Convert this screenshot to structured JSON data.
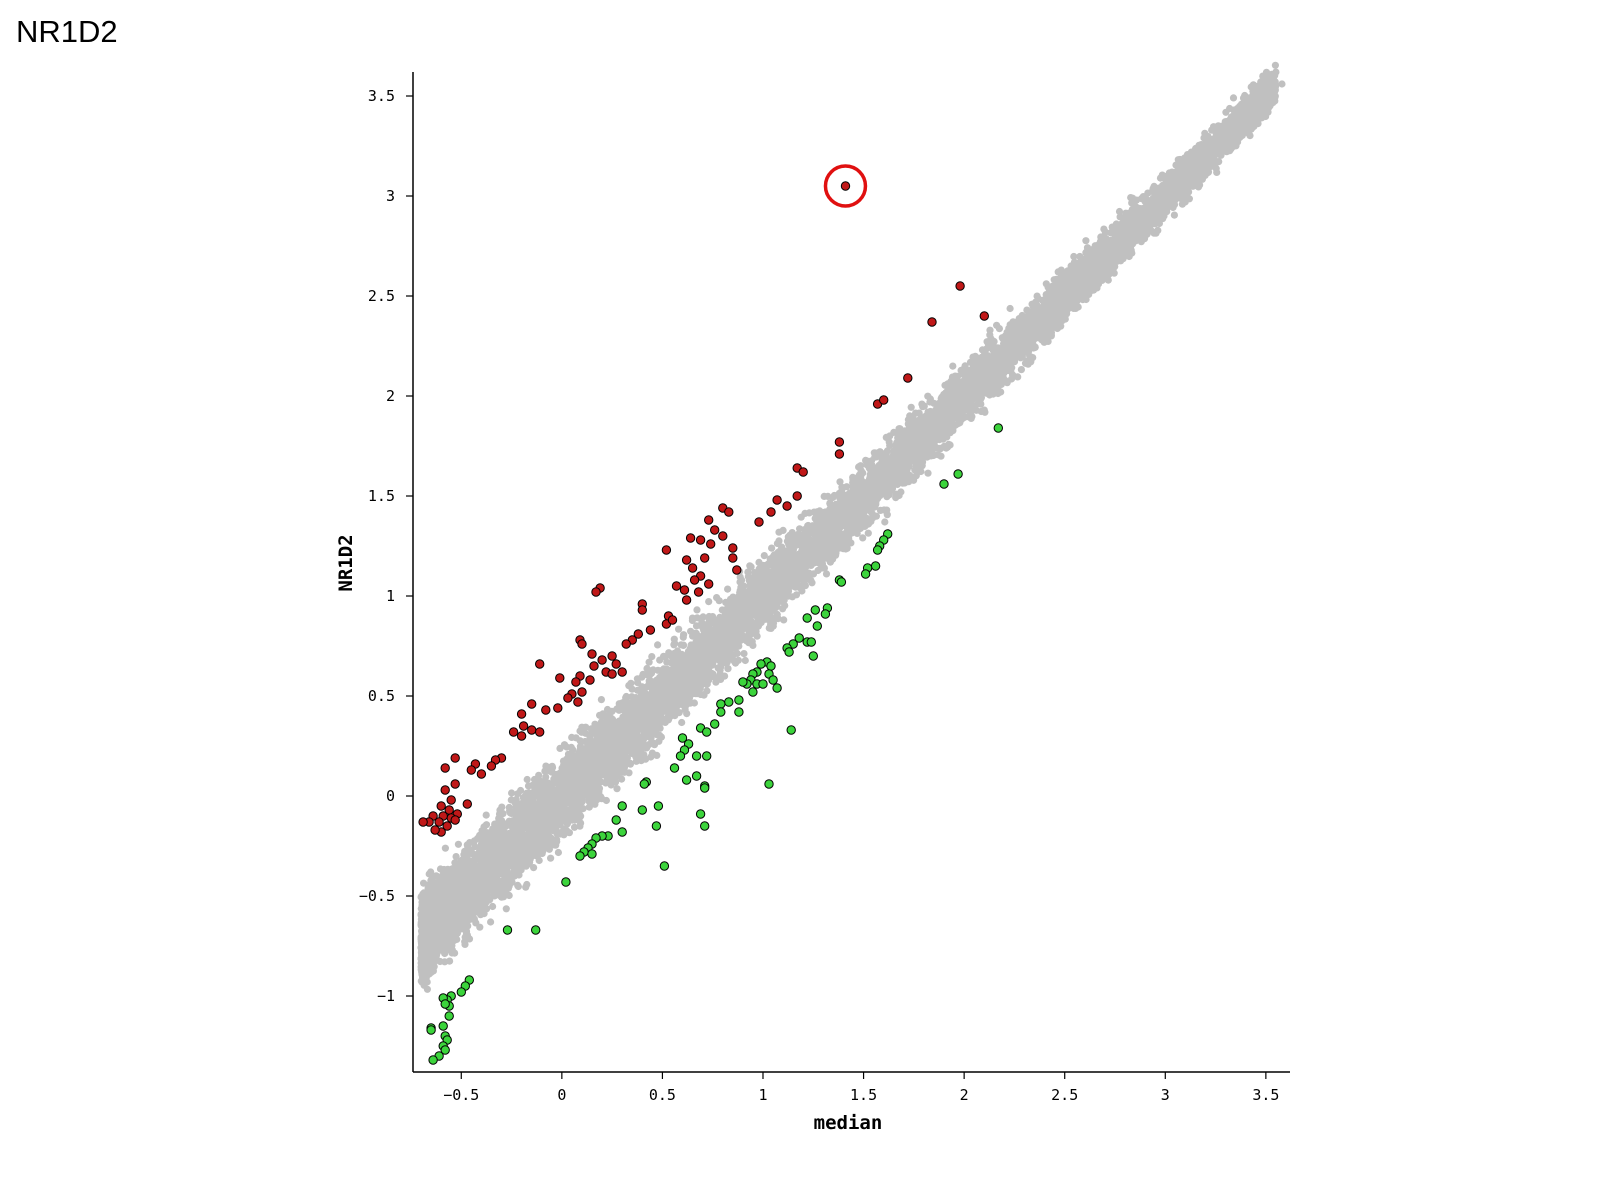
{
  "page": {
    "title": "NR1D2"
  },
  "chart_data": {
    "type": "scatter",
    "title": "",
    "xlabel": "median",
    "ylabel": "NR1D2",
    "xlim": [
      -0.74,
      3.62
    ],
    "ylim": [
      -1.38,
      3.62
    ],
    "x_ticks": [
      "-0.5",
      "0",
      "0.5",
      "1",
      "1.5",
      "2",
      "2.5",
      "3",
      "3.5"
    ],
    "y_ticks": [
      "-1",
      "-0.5",
      "0",
      "0.5",
      "1",
      "1.5",
      "2",
      "2.5",
      "3",
      "3.5"
    ],
    "grid": false,
    "legend": "none",
    "colors": {
      "background": "#c0c0c0",
      "up": "#c01818",
      "down": "#3cd43c",
      "highlight_ring": "#e01010"
    },
    "background_band": {
      "description": "dense cloud of non-significant genes along the diagonal",
      "count_approx": 20000,
      "x_range": [
        -0.7,
        3.55
      ],
      "slope": 1.0,
      "intercept": 0.0,
      "spread": 0.22,
      "top_tail": [
        [
          3.45,
          3.53
        ],
        [
          3.52,
          3.56
        ],
        [
          3.58,
          3.56
        ]
      ]
    },
    "series": [
      {
        "name": "",
        "role": "up",
        "points": [
          [
            1.41,
            3.05
          ],
          [
            1.98,
            2.55
          ],
          [
            1.84,
            2.37
          ],
          [
            2.1,
            2.4
          ],
          [
            1.72,
            2.09
          ],
          [
            1.57,
            1.96
          ],
          [
            1.6,
            1.98
          ],
          [
            1.38,
            1.77
          ],
          [
            1.38,
            1.71
          ],
          [
            1.17,
            1.64
          ],
          [
            1.2,
            1.62
          ],
          [
            1.07,
            1.48
          ],
          [
            1.12,
            1.45
          ],
          [
            1.17,
            1.5
          ],
          [
            1.04,
            1.42
          ],
          [
            0.98,
            1.37
          ],
          [
            0.8,
            1.44
          ],
          [
            0.83,
            1.42
          ],
          [
            0.73,
            1.38
          ],
          [
            0.76,
            1.33
          ],
          [
            0.8,
            1.3
          ],
          [
            0.85,
            1.24
          ],
          [
            0.69,
            1.28
          ],
          [
            0.74,
            1.26
          ],
          [
            0.64,
            1.29
          ],
          [
            0.52,
            1.23
          ],
          [
            0.62,
            1.18
          ],
          [
            0.71,
            1.19
          ],
          [
            0.65,
            1.14
          ],
          [
            0.69,
            1.1
          ],
          [
            0.85,
            1.19
          ],
          [
            0.87,
            1.13
          ],
          [
            0.73,
            1.06
          ],
          [
            0.66,
            1.08
          ],
          [
            0.61,
            1.03
          ],
          [
            0.68,
            1.02
          ],
          [
            0.57,
            1.05
          ],
          [
            0.62,
            0.98
          ],
          [
            0.53,
            0.9
          ],
          [
            0.52,
            0.86
          ],
          [
            0.55,
            0.88
          ],
          [
            0.4,
            0.96
          ],
          [
            0.4,
            0.93
          ],
          [
            0.44,
            0.83
          ],
          [
            0.38,
            0.81
          ],
          [
            0.35,
            0.78
          ],
          [
            0.32,
            0.76
          ],
          [
            0.19,
            1.04
          ],
          [
            0.17,
            1.02
          ],
          [
            0.09,
            0.78
          ],
          [
            0.1,
            0.76
          ],
          [
            0.15,
            0.71
          ],
          [
            0.2,
            0.68
          ],
          [
            0.25,
            0.7
          ],
          [
            0.27,
            0.66
          ],
          [
            0.22,
            0.62
          ],
          [
            0.16,
            0.65
          ],
          [
            0.25,
            0.61
          ],
          [
            0.3,
            0.62
          ],
          [
            0.14,
            0.58
          ],
          [
            0.09,
            0.6
          ],
          [
            0.07,
            0.57
          ],
          [
            0.1,
            0.52
          ],
          [
            0.05,
            0.51
          ],
          [
            -0.01,
            0.59
          ],
          [
            -0.11,
            0.66
          ],
          [
            -0.15,
            0.46
          ],
          [
            -0.08,
            0.43
          ],
          [
            -0.02,
            0.44
          ],
          [
            0.08,
            0.47
          ],
          [
            0.03,
            0.49
          ],
          [
            -0.2,
            0.41
          ],
          [
            -0.19,
            0.35
          ],
          [
            -0.15,
            0.33
          ],
          [
            -0.24,
            0.32
          ],
          [
            -0.11,
            0.32
          ],
          [
            -0.2,
            0.3
          ],
          [
            -0.3,
            0.19
          ],
          [
            -0.33,
            0.18
          ],
          [
            -0.35,
            0.15
          ],
          [
            -0.43,
            0.16
          ],
          [
            -0.4,
            0.11
          ],
          [
            -0.45,
            0.13
          ],
          [
            -0.53,
            0.19
          ],
          [
            -0.58,
            0.14
          ],
          [
            -0.53,
            0.06
          ],
          [
            -0.58,
            0.03
          ],
          [
            -0.55,
            -0.02
          ],
          [
            -0.6,
            -0.05
          ],
          [
            -0.47,
            -0.04
          ],
          [
            -0.56,
            -0.07
          ],
          [
            -0.52,
            -0.09
          ],
          [
            -0.55,
            -0.11
          ],
          [
            -0.59,
            -0.1
          ],
          [
            -0.64,
            -0.1
          ],
          [
            -0.61,
            -0.13
          ],
          [
            -0.57,
            -0.15
          ],
          [
            -0.6,
            -0.18
          ],
          [
            -0.63,
            -0.17
          ],
          [
            -0.66,
            -0.13
          ],
          [
            -0.69,
            -0.13
          ],
          [
            -0.53,
            -0.12
          ]
        ]
      },
      {
        "name": "",
        "role": "down",
        "points": [
          [
            2.17,
            1.84
          ],
          [
            1.97,
            1.61
          ],
          [
            1.9,
            1.56
          ],
          [
            1.62,
            1.31
          ],
          [
            1.6,
            1.28
          ],
          [
            1.58,
            1.25
          ],
          [
            1.57,
            1.23
          ],
          [
            1.56,
            1.15
          ],
          [
            1.52,
            1.14
          ],
          [
            1.51,
            1.11
          ],
          [
            1.38,
            1.08
          ],
          [
            1.39,
            1.07
          ],
          [
            1.32,
            0.94
          ],
          [
            1.31,
            0.91
          ],
          [
            1.26,
            0.93
          ],
          [
            1.27,
            0.85
          ],
          [
            1.22,
            0.89
          ],
          [
            1.18,
            0.79
          ],
          [
            1.22,
            0.77
          ],
          [
            1.24,
            0.77
          ],
          [
            1.15,
            0.76
          ],
          [
            1.12,
            0.74
          ],
          [
            1.13,
            0.72
          ],
          [
            1.25,
            0.7
          ],
          [
            1.02,
            0.67
          ],
          [
            0.99,
            0.66
          ],
          [
            1.04,
            0.65
          ],
          [
            0.97,
            0.62
          ],
          [
            1.03,
            0.61
          ],
          [
            1.05,
            0.58
          ],
          [
            0.95,
            0.61
          ],
          [
            0.94,
            0.58
          ],
          [
            0.92,
            0.56
          ],
          [
            0.97,
            0.56
          ],
          [
            1.0,
            0.56
          ],
          [
            0.9,
            0.57
          ],
          [
            0.95,
            0.52
          ],
          [
            1.07,
            0.54
          ],
          [
            0.88,
            0.48
          ],
          [
            0.83,
            0.47
          ],
          [
            0.79,
            0.46
          ],
          [
            0.79,
            0.42
          ],
          [
            0.88,
            0.42
          ],
          [
            0.76,
            0.36
          ],
          [
            0.69,
            0.34
          ],
          [
            0.72,
            0.32
          ],
          [
            0.6,
            0.29
          ],
          [
            0.63,
            0.26
          ],
          [
            0.61,
            0.23
          ],
          [
            0.67,
            0.2
          ],
          [
            0.59,
            0.2
          ],
          [
            0.72,
            0.2
          ],
          [
            1.14,
            0.33
          ],
          [
            0.67,
            0.1
          ],
          [
            0.56,
            0.14
          ],
          [
            0.62,
            0.08
          ],
          [
            0.71,
            0.05
          ],
          [
            0.71,
            0.04
          ],
          [
            0.42,
            0.07
          ],
          [
            0.41,
            0.06
          ],
          [
            1.03,
            0.06
          ],
          [
            0.48,
            -0.05
          ],
          [
            0.69,
            -0.09
          ],
          [
            0.71,
            -0.15
          ],
          [
            0.3,
            -0.05
          ],
          [
            0.4,
            -0.07
          ],
          [
            0.27,
            -0.12
          ],
          [
            0.47,
            -0.15
          ],
          [
            0.3,
            -0.18
          ],
          [
            0.23,
            -0.2
          ],
          [
            0.2,
            -0.2
          ],
          [
            0.17,
            -0.21
          ],
          [
            0.15,
            -0.24
          ],
          [
            0.13,
            -0.26
          ],
          [
            0.11,
            -0.28
          ],
          [
            0.09,
            -0.3
          ],
          [
            0.15,
            -0.29
          ],
          [
            0.02,
            -0.43
          ],
          [
            0.51,
            -0.35
          ],
          [
            -0.13,
            -0.67
          ],
          [
            -0.27,
            -0.67
          ],
          [
            -0.46,
            -0.92
          ],
          [
            -0.48,
            -0.95
          ],
          [
            -0.5,
            -0.98
          ],
          [
            -0.55,
            -1.0
          ],
          [
            -0.57,
            -1.02
          ],
          [
            -0.56,
            -1.05
          ],
          [
            -0.59,
            -1.01
          ],
          [
            -0.58,
            -1.04
          ],
          [
            -0.56,
            -1.1
          ],
          [
            -0.59,
            -1.15
          ],
          [
            -0.65,
            -1.16
          ],
          [
            -0.65,
            -1.17
          ],
          [
            -0.58,
            -1.2
          ],
          [
            -0.57,
            -1.22
          ],
          [
            -0.59,
            -1.25
          ],
          [
            -0.58,
            -1.27
          ],
          [
            -0.61,
            -1.3
          ],
          [
            -0.64,
            -1.32
          ]
        ]
      }
    ],
    "annotations": [
      {
        "type": "circle",
        "target": [
          1.41,
          3.05
        ]
      }
    ]
  }
}
